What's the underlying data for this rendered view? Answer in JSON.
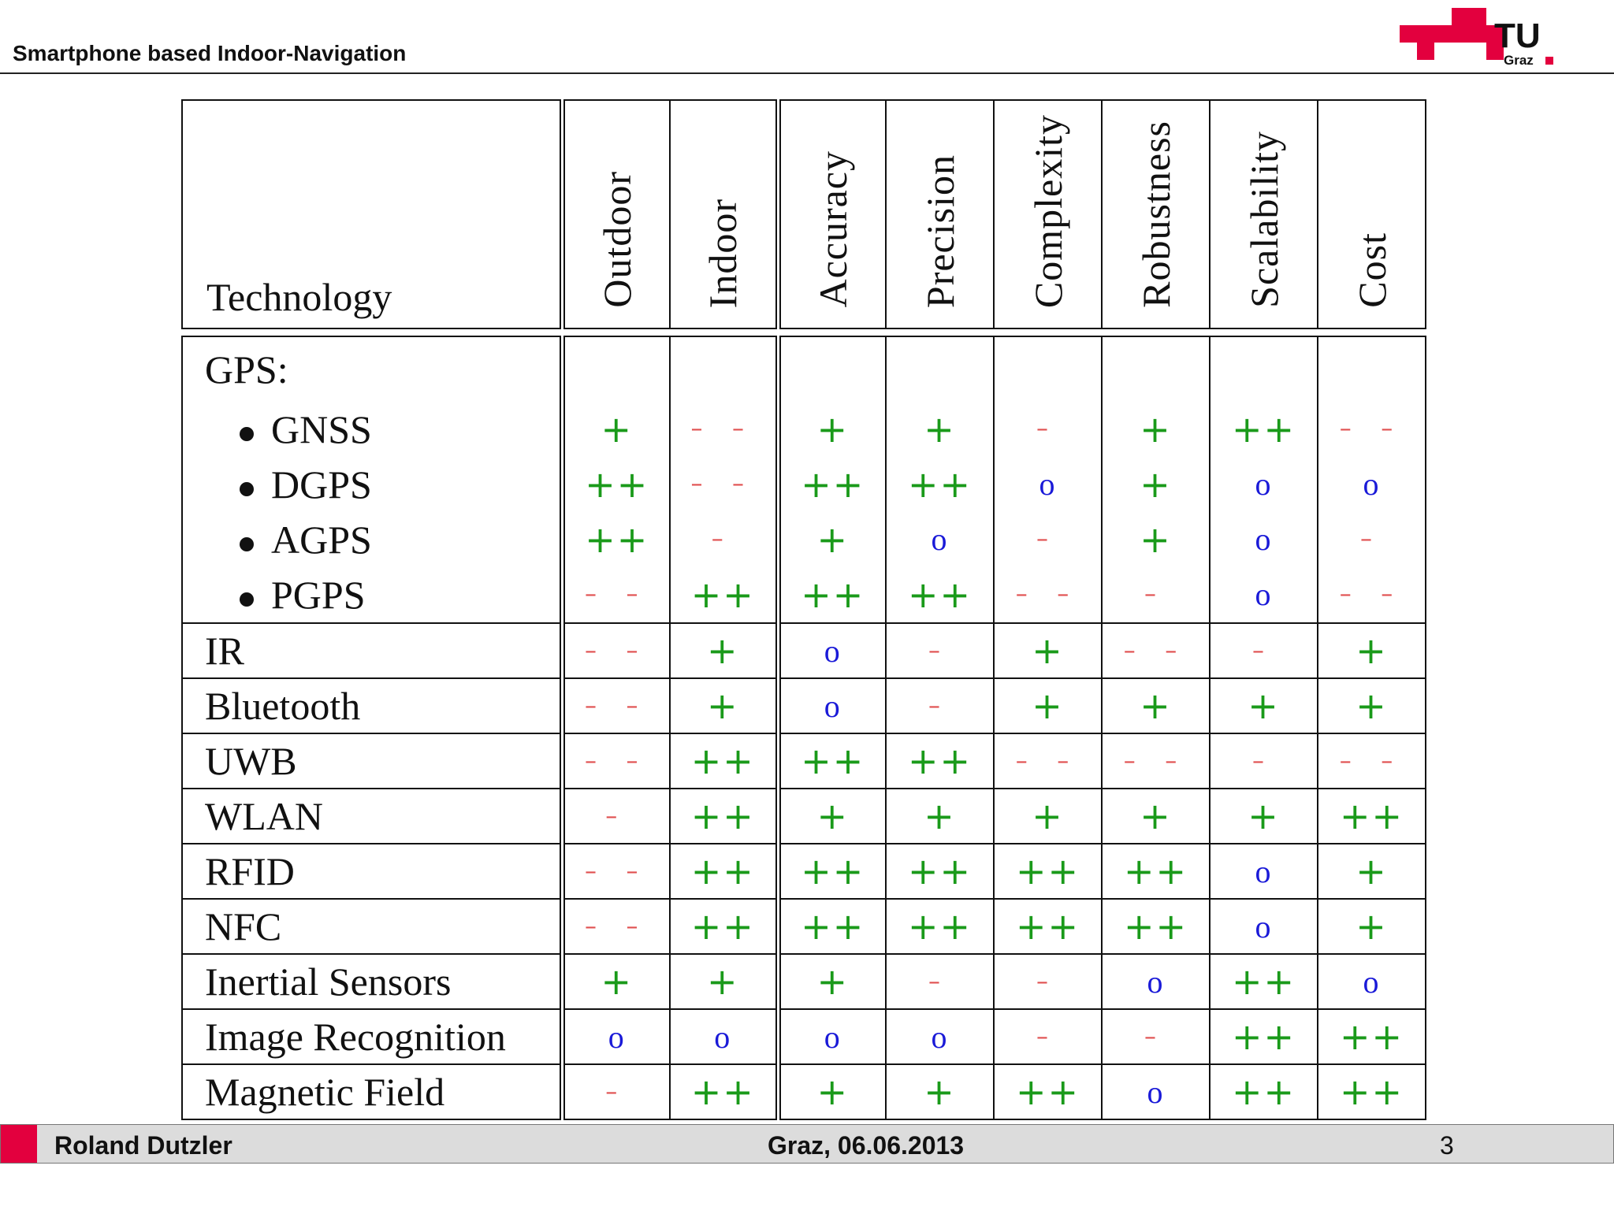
{
  "header": {
    "title": "Smartphone based Indoor-Navigation",
    "logo_text": "TU",
    "logo_sub": "Graz"
  },
  "table": {
    "columns": [
      "Technology",
      "Outdoor",
      "Indoor",
      "Accuracy",
      "Precision",
      "Complexity",
      "Robustness",
      "Scalability",
      "Cost"
    ],
    "gps": {
      "title": "GPS:",
      "items": [
        {
          "label": "GNSS",
          "values": [
            "+",
            "– –",
            "+",
            "+",
            "–",
            "+",
            "++",
            "– –"
          ]
        },
        {
          "label": "DGPS",
          "values": [
            "++",
            "– –",
            "++",
            "++",
            "o",
            "+",
            "o",
            "o"
          ]
        },
        {
          "label": "AGPS",
          "values": [
            "++",
            "–",
            "+",
            "o",
            "–",
            "+",
            "o",
            "–"
          ]
        },
        {
          "label": "PGPS",
          "values": [
            "– –",
            "++",
            "++",
            "++",
            "– –",
            "–",
            "o",
            "– –"
          ]
        }
      ]
    },
    "rows": [
      {
        "label": "IR",
        "values": [
          "– –",
          "+",
          "o",
          "–",
          "+",
          "– –",
          "–",
          "+"
        ]
      },
      {
        "label": "Bluetooth",
        "values": [
          "– –",
          "+",
          "o",
          "–",
          "+",
          "+",
          "+",
          "+"
        ]
      },
      {
        "label": "UWB",
        "values": [
          "– –",
          "++",
          "++",
          "++",
          "– –",
          "– –",
          "–",
          "– –"
        ]
      },
      {
        "label": "WLAN",
        "values": [
          "–",
          "++",
          "+",
          "+",
          "+",
          "+",
          "+",
          "++"
        ]
      },
      {
        "label": "RFID",
        "values": [
          "– –",
          "++",
          "++",
          "++",
          "++",
          "++",
          "o",
          "+"
        ]
      },
      {
        "label": "NFC",
        "values": [
          "– –",
          "++",
          "++",
          "++",
          "++",
          "++",
          "o",
          "+"
        ]
      },
      {
        "label": "Inertial Sensors",
        "values": [
          "+",
          "+",
          "+",
          "–",
          "–",
          "o",
          "++",
          "o"
        ]
      },
      {
        "label": "Image Recognition",
        "values": [
          "o",
          "o",
          "o",
          "o",
          "–",
          "–",
          "++",
          "++"
        ]
      },
      {
        "label": "Magnetic Field",
        "values": [
          "–",
          "++",
          "+",
          "+",
          "++",
          "o",
          "++",
          "++"
        ]
      }
    ]
  },
  "footer": {
    "author": "Roland Dutzler",
    "date": "Graz, 06.06.2013",
    "page": "3"
  },
  "colors": {
    "plus": "#1a9a1a",
    "minus": "#e05050",
    "neutral": "#1a1ad8",
    "brand": "#e3003e"
  }
}
